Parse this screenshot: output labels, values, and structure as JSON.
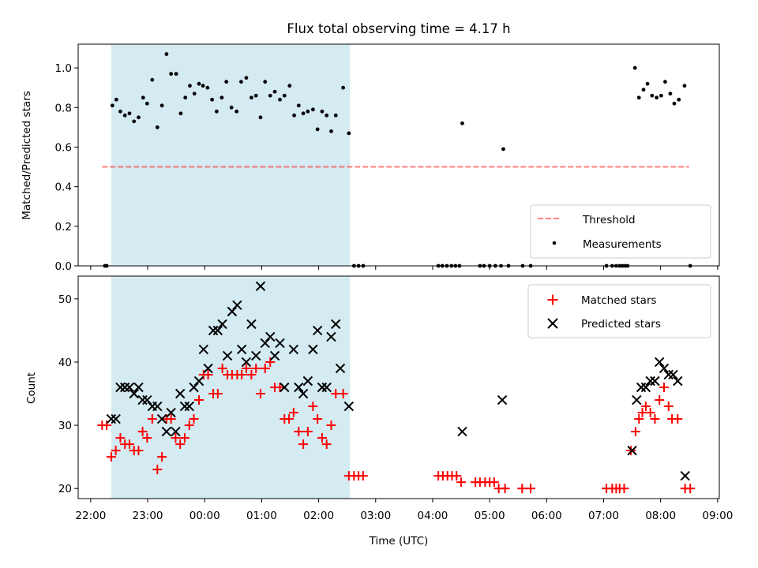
{
  "chart_data": [
    {
      "type": "scatter",
      "title": "Flux total observing time = 4.17 h",
      "xlabel": "",
      "ylabel": "Matched/Predicted stars",
      "xlim_hours": [
        21.78,
        33.03
      ],
      "ylim": [
        0,
        1.12
      ],
      "yticks": [
        0.0,
        0.2,
        0.4,
        0.6,
        0.8,
        1.0
      ],
      "ytick_labels": [
        "0.0",
        "0.2",
        "0.4",
        "0.6",
        "0.8",
        "1.0"
      ],
      "shaded_interval_hours": [
        22.36,
        26.55
      ],
      "threshold": {
        "value": 0.5,
        "x_range_hours": [
          22.2,
          32.5
        ],
        "label": "Threshold"
      },
      "legend_position": "lower-right",
      "series": [
        {
          "name": "Measurements",
          "points": [
            [
              22.25,
              0.0
            ],
            [
              22.28,
              0.0
            ],
            [
              22.38,
              0.81
            ],
            [
              22.45,
              0.84
            ],
            [
              22.52,
              0.78
            ],
            [
              22.6,
              0.76
            ],
            [
              22.68,
              0.77
            ],
            [
              22.76,
              0.73
            ],
            [
              22.84,
              0.75
            ],
            [
              22.92,
              0.85
            ],
            [
              22.99,
              0.82
            ],
            [
              23.08,
              0.94
            ],
            [
              23.17,
              0.7
            ],
            [
              23.25,
              0.81
            ],
            [
              23.33,
              1.07
            ],
            [
              23.41,
              0.97
            ],
            [
              23.5,
              0.97
            ],
            [
              23.58,
              0.77
            ],
            [
              23.66,
              0.85
            ],
            [
              23.74,
              0.91
            ],
            [
              23.82,
              0.87
            ],
            [
              23.9,
              0.92
            ],
            [
              23.97,
              0.91
            ],
            [
              24.05,
              0.9
            ],
            [
              24.13,
              0.84
            ],
            [
              24.21,
              0.78
            ],
            [
              24.3,
              0.85
            ],
            [
              24.38,
              0.93
            ],
            [
              24.47,
              0.8
            ],
            [
              24.56,
              0.78
            ],
            [
              24.64,
              0.93
            ],
            [
              24.73,
              0.95
            ],
            [
              24.82,
              0.85
            ],
            [
              24.9,
              0.86
            ],
            [
              24.98,
              0.75
            ],
            [
              25.06,
              0.93
            ],
            [
              25.15,
              0.86
            ],
            [
              25.23,
              0.88
            ],
            [
              25.32,
              0.84
            ],
            [
              25.4,
              0.86
            ],
            [
              25.49,
              0.91
            ],
            [
              25.57,
              0.76
            ],
            [
              25.65,
              0.81
            ],
            [
              25.73,
              0.77
            ],
            [
              25.81,
              0.78
            ],
            [
              25.9,
              0.79
            ],
            [
              25.98,
              0.69
            ],
            [
              26.06,
              0.78
            ],
            [
              26.14,
              0.76
            ],
            [
              26.22,
              0.68
            ],
            [
              26.3,
              0.76
            ],
            [
              26.43,
              0.9
            ],
            [
              26.53,
              0.67
            ],
            [
              26.62,
              0.0
            ],
            [
              26.7,
              0.0
            ],
            [
              26.78,
              0.0
            ],
            [
              28.1,
              0.0
            ],
            [
              28.17,
              0.0
            ],
            [
              28.25,
              0.0
            ],
            [
              28.33,
              0.0
            ],
            [
              28.4,
              0.0
            ],
            [
              28.47,
              0.0
            ],
            [
              28.52,
              0.72
            ],
            [
              28.83,
              0.0
            ],
            [
              28.9,
              0.0
            ],
            [
              29.0,
              0.0
            ],
            [
              29.1,
              0.0
            ],
            [
              29.2,
              0.0
            ],
            [
              29.24,
              0.59
            ],
            [
              29.33,
              0.0
            ],
            [
              29.58,
              0.0
            ],
            [
              29.72,
              0.0
            ],
            [
              31.05,
              0.0
            ],
            [
              31.15,
              0.0
            ],
            [
              31.22,
              0.0
            ],
            [
              31.28,
              0.0
            ],
            [
              31.33,
              0.0
            ],
            [
              31.38,
              0.0
            ],
            [
              31.42,
              0.0
            ],
            [
              31.55,
              1.0
            ],
            [
              31.62,
              0.85
            ],
            [
              31.7,
              0.89
            ],
            [
              31.77,
              0.92
            ],
            [
              31.85,
              0.86
            ],
            [
              31.93,
              0.85
            ],
            [
              32.01,
              0.86
            ],
            [
              32.08,
              0.93
            ],
            [
              32.17,
              0.87
            ],
            [
              32.24,
              0.82
            ],
            [
              32.32,
              0.84
            ],
            [
              32.42,
              0.91
            ],
            [
              32.52,
              0.0
            ]
          ]
        }
      ]
    },
    {
      "type": "scatter",
      "title": "",
      "xlabel": "Time (UTC)",
      "ylabel": "Count",
      "xlim_hours": [
        21.78,
        33.03
      ],
      "ylim": [
        18.4,
        53.6
      ],
      "yticks": [
        20,
        30,
        40,
        50
      ],
      "ytick_labels": [
        "20",
        "30",
        "40",
        "50"
      ],
      "xticks_hours": [
        22,
        23,
        24,
        25,
        26,
        27,
        28,
        29,
        30,
        31,
        32,
        33
      ],
      "xtick_labels": [
        "22:00",
        "23:00",
        "00:00",
        "01:00",
        "02:00",
        "03:00",
        "04:00",
        "05:00",
        "06:00",
        "07:00",
        "08:00",
        "09:00"
      ],
      "shaded_interval_hours": [
        22.36,
        26.55
      ],
      "legend_position": "upper-right",
      "series": [
        {
          "name": "Matched stars",
          "color": "#ff0000",
          "marker": "plus",
          "points": [
            [
              22.2,
              30
            ],
            [
              22.28,
              30
            ],
            [
              22.36,
              25
            ],
            [
              22.44,
              26
            ],
            [
              22.52,
              28
            ],
            [
              22.6,
              27
            ],
            [
              22.68,
              27
            ],
            [
              22.76,
              26
            ],
            [
              22.84,
              26
            ],
            [
              22.91,
              29
            ],
            [
              22.99,
              28
            ],
            [
              23.08,
              31
            ],
            [
              23.17,
              23
            ],
            [
              23.25,
              25
            ],
            [
              23.33,
              31
            ],
            [
              23.41,
              31
            ],
            [
              23.49,
              28
            ],
            [
              23.57,
              27
            ],
            [
              23.65,
              28
            ],
            [
              23.73,
              30
            ],
            [
              23.81,
              31
            ],
            [
              23.9,
              34
            ],
            [
              23.98,
              38
            ],
            [
              24.06,
              38
            ],
            [
              24.15,
              35
            ],
            [
              24.23,
              35
            ],
            [
              24.31,
              39
            ],
            [
              24.4,
              38
            ],
            [
              24.48,
              38
            ],
            [
              24.57,
              38
            ],
            [
              24.65,
              38
            ],
            [
              24.73,
              39
            ],
            [
              24.82,
              38
            ],
            [
              24.9,
              39
            ],
            [
              24.98,
              35
            ],
            [
              25.06,
              39
            ],
            [
              25.15,
              40
            ],
            [
              25.23,
              36
            ],
            [
              25.32,
              36
            ],
            [
              25.4,
              31
            ],
            [
              25.48,
              31
            ],
            [
              25.56,
              32
            ],
            [
              25.65,
              29
            ],
            [
              25.73,
              27
            ],
            [
              25.81,
              29
            ],
            [
              25.9,
              33
            ],
            [
              25.98,
              31
            ],
            [
              26.06,
              28
            ],
            [
              26.14,
              27
            ],
            [
              26.22,
              30
            ],
            [
              26.3,
              35
            ],
            [
              26.43,
              35
            ],
            [
              26.53,
              22
            ],
            [
              26.62,
              22
            ],
            [
              26.7,
              22
            ],
            [
              26.78,
              22
            ],
            [
              28.1,
              22
            ],
            [
              28.18,
              22
            ],
            [
              28.26,
              22
            ],
            [
              28.34,
              22
            ],
            [
              28.42,
              22
            ],
            [
              28.5,
              21
            ],
            [
              28.75,
              21
            ],
            [
              28.83,
              21
            ],
            [
              28.92,
              21
            ],
            [
              29.0,
              21
            ],
            [
              29.08,
              21
            ],
            [
              29.16,
              20
            ],
            [
              29.27,
              20
            ],
            [
              29.57,
              20
            ],
            [
              29.72,
              20
            ],
            [
              31.05,
              20
            ],
            [
              31.15,
              20
            ],
            [
              31.22,
              20
            ],
            [
              31.28,
              20
            ],
            [
              31.36,
              20
            ],
            [
              31.48,
              26
            ],
            [
              31.56,
              29
            ],
            [
              31.62,
              31
            ],
            [
              31.68,
              32
            ],
            [
              31.74,
              33
            ],
            [
              31.82,
              32
            ],
            [
              31.9,
              31
            ],
            [
              31.98,
              34
            ],
            [
              32.06,
              36
            ],
            [
              32.14,
              33
            ],
            [
              32.2,
              31
            ],
            [
              32.3,
              31
            ],
            [
              32.43,
              20
            ],
            [
              32.52,
              20
            ]
          ]
        },
        {
          "name": "Predicted stars",
          "color": "#000000",
          "marker": "x",
          "points": [
            [
              22.36,
              31
            ],
            [
              22.44,
              31
            ],
            [
              22.52,
              36
            ],
            [
              22.6,
              36
            ],
            [
              22.68,
              36
            ],
            [
              22.76,
              35
            ],
            [
              22.84,
              36
            ],
            [
              22.91,
              34
            ],
            [
              22.99,
              34
            ],
            [
              23.08,
              33
            ],
            [
              23.17,
              33
            ],
            [
              23.25,
              31
            ],
            [
              23.33,
              29
            ],
            [
              23.41,
              32
            ],
            [
              23.49,
              29
            ],
            [
              23.57,
              35
            ],
            [
              23.65,
              33
            ],
            [
              23.73,
              33
            ],
            [
              23.81,
              36
            ],
            [
              23.9,
              37
            ],
            [
              23.98,
              42
            ],
            [
              24.06,
              39
            ],
            [
              24.15,
              45
            ],
            [
              24.23,
              45
            ],
            [
              24.31,
              46
            ],
            [
              24.4,
              41
            ],
            [
              24.48,
              48
            ],
            [
              24.57,
              49
            ],
            [
              24.65,
              42
            ],
            [
              24.73,
              40
            ],
            [
              24.82,
              46
            ],
            [
              24.9,
              41
            ],
            [
              24.98,
              52
            ],
            [
              25.06,
              43
            ],
            [
              25.15,
              44
            ],
            [
              25.23,
              41
            ],
            [
              25.32,
              43
            ],
            [
              25.4,
              36
            ],
            [
              25.56,
              42
            ],
            [
              25.65,
              36
            ],
            [
              25.73,
              35
            ],
            [
              25.81,
              37
            ],
            [
              25.9,
              42
            ],
            [
              25.98,
              45
            ],
            [
              26.06,
              36
            ],
            [
              26.14,
              36
            ],
            [
              26.22,
              44
            ],
            [
              26.3,
              46
            ],
            [
              26.38,
              39
            ],
            [
              26.53,
              33
            ],
            [
              28.52,
              29
            ],
            [
              29.22,
              34
            ],
            [
              31.5,
              26
            ],
            [
              31.58,
              34
            ],
            [
              31.66,
              36
            ],
            [
              31.74,
              36
            ],
            [
              31.82,
              37
            ],
            [
              31.9,
              37
            ],
            [
              31.98,
              40
            ],
            [
              32.06,
              39
            ],
            [
              32.14,
              38
            ],
            [
              32.22,
              38
            ],
            [
              32.3,
              37
            ],
            [
              32.43,
              22
            ]
          ]
        }
      ]
    }
  ]
}
